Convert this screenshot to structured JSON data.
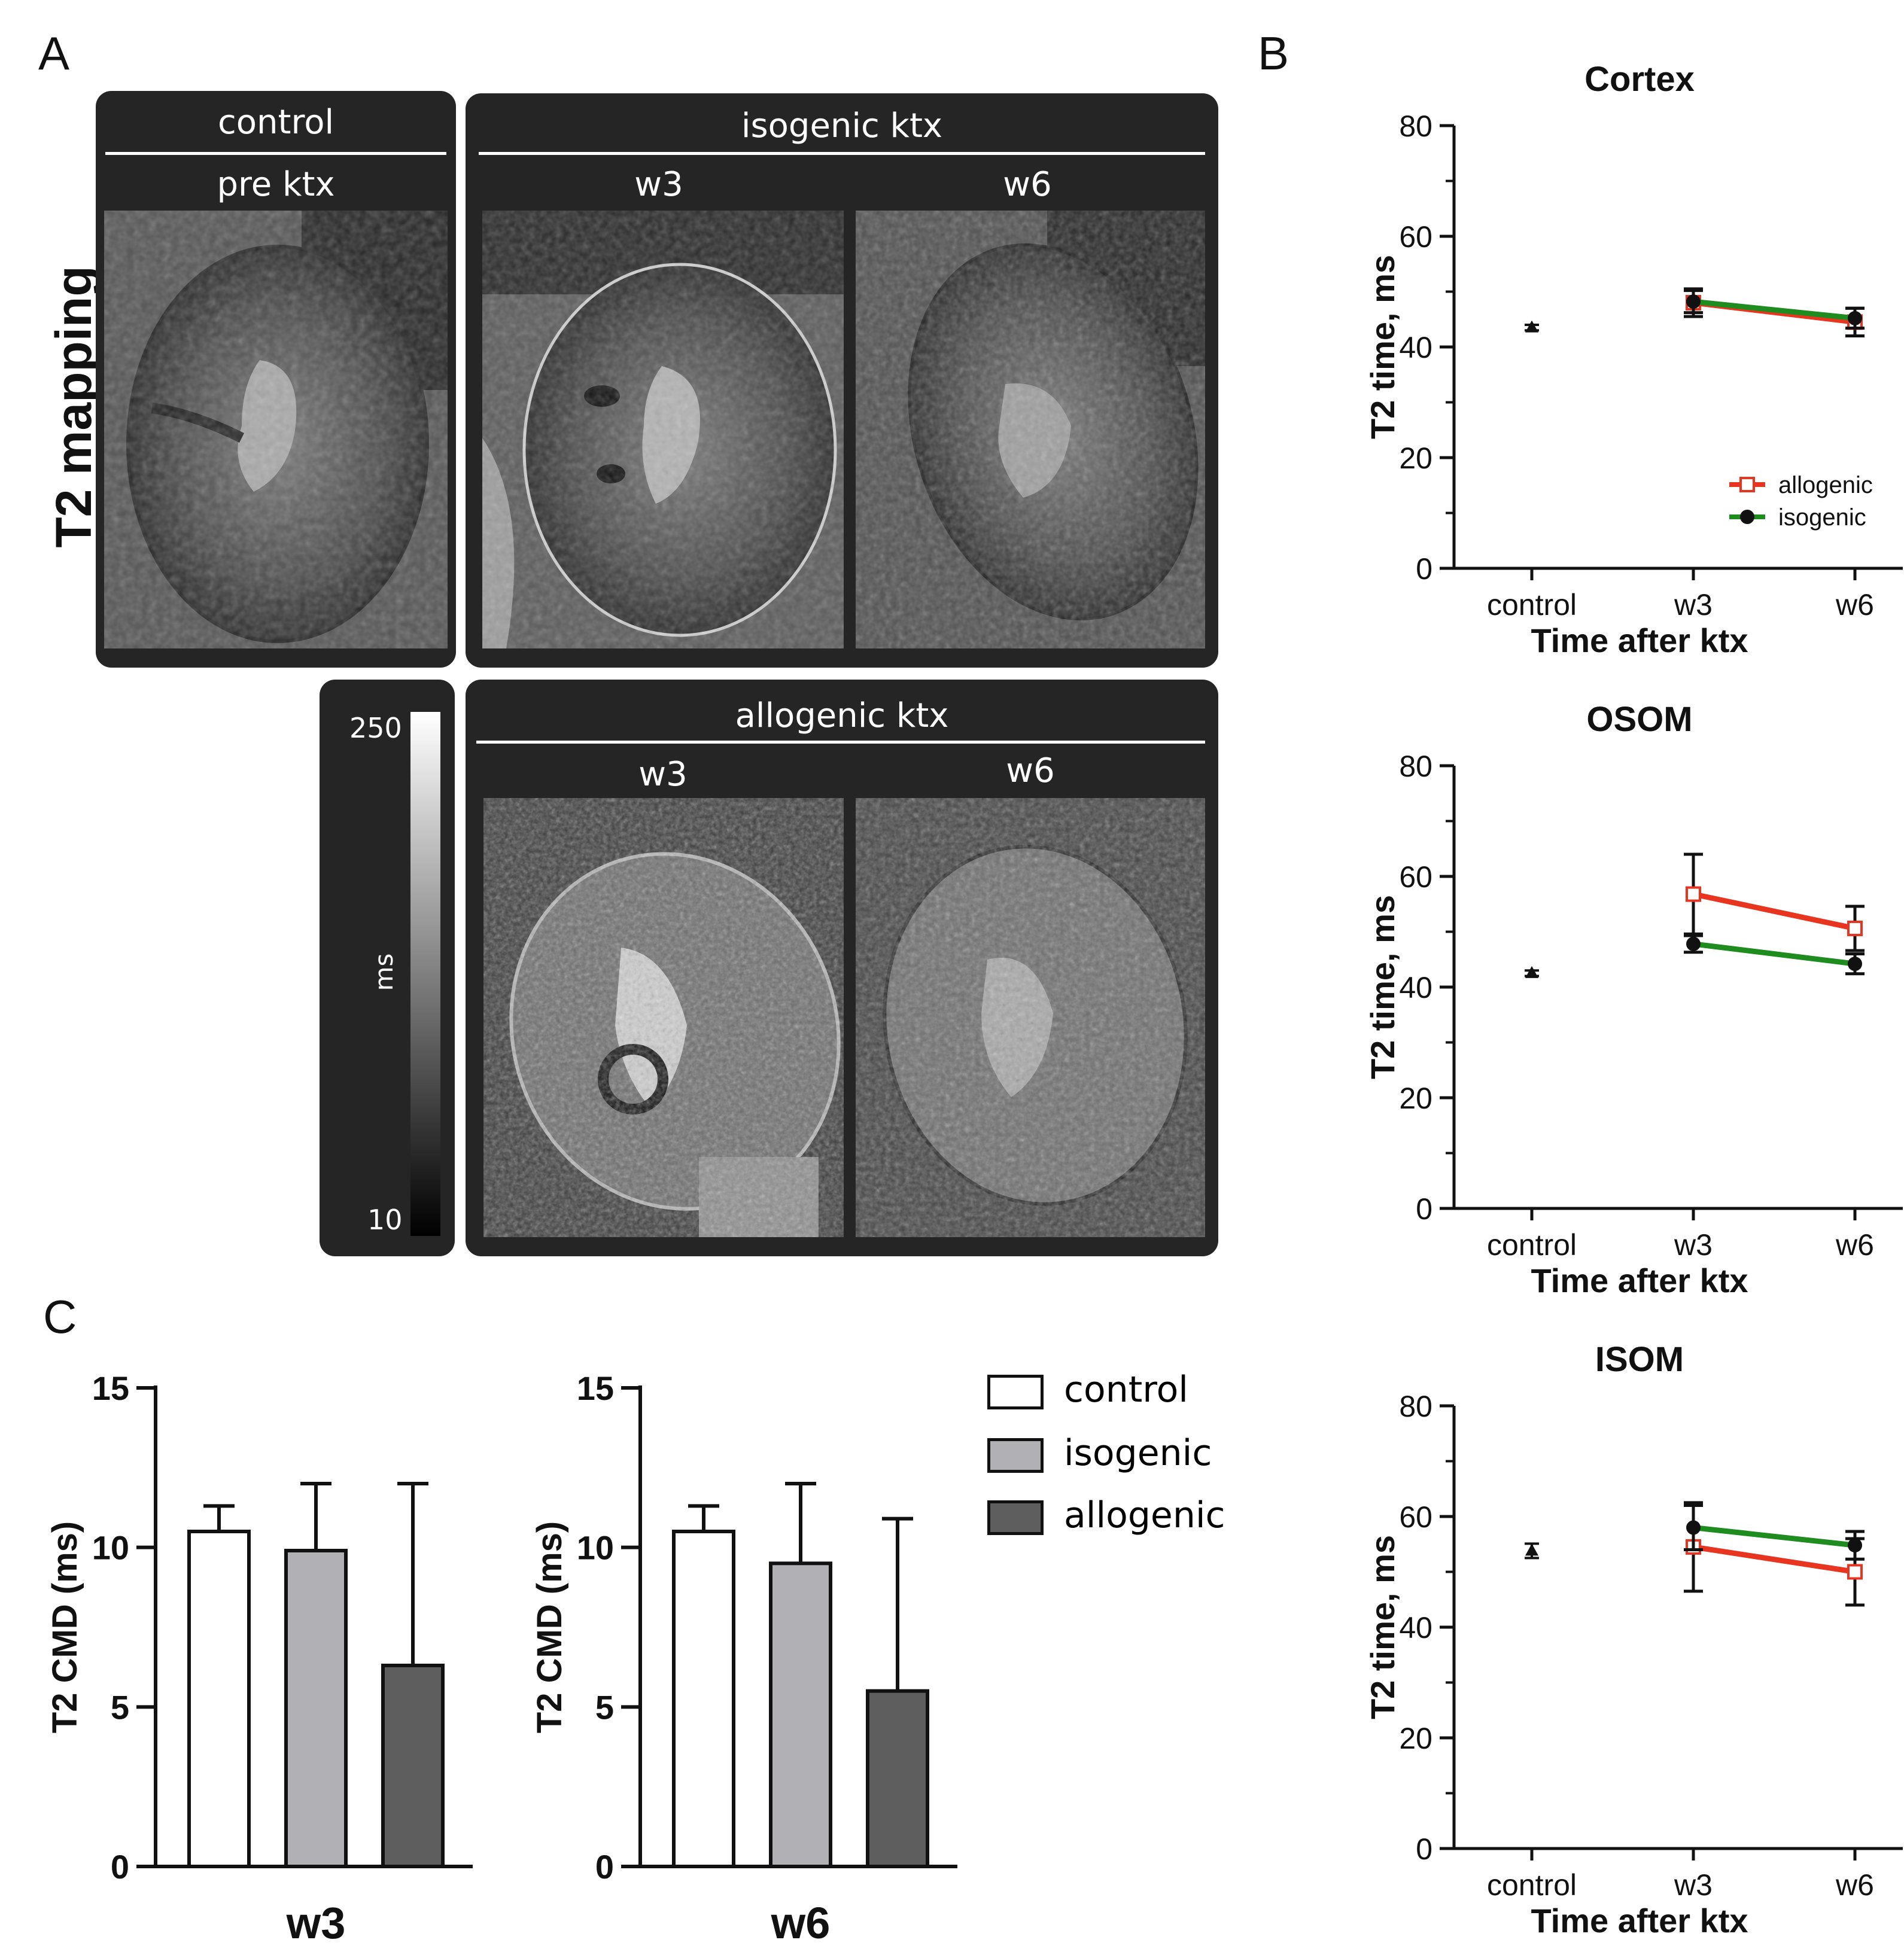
{
  "panels": {
    "a": {
      "letter": "A"
    },
    "b": {
      "letter": "B"
    },
    "c": {
      "letter": "C"
    }
  },
  "panel_a": {
    "side_title": "T2 mapping",
    "control_group": {
      "title": "control",
      "col": "pre ktx"
    },
    "isogenic_group": {
      "title": "isogenic ktx",
      "cols": [
        "w3",
        "w6"
      ]
    },
    "allogenic_group": {
      "title": "allogenic ktx",
      "cols": [
        "w3",
        "w6"
      ]
    },
    "colorbar": {
      "max": "250",
      "min": "10",
      "unit": "ms"
    }
  },
  "chart_data": [
    {
      "type": "line",
      "title": "Cortex",
      "xlabel": "Time after ktx",
      "ylabel": "T2 time, ms",
      "ylim": [
        0,
        80
      ],
      "yticks": [
        0,
        20,
        40,
        60,
        80
      ],
      "categories": [
        "control",
        "w3",
        "w6"
      ],
      "legend": [
        "allogenic",
        "isogenic"
      ],
      "control": {
        "value": 43.5,
        "err": 0.5
      },
      "series": [
        {
          "name": "allogenic",
          "color": "#e8351f",
          "marker": "open-square",
          "values": [
            null,
            48,
            44.5
          ],
          "errors": [
            null,
            2.5,
            2.5
          ]
        },
        {
          "name": "isogenic",
          "color": "#1e8c1e",
          "marker": "filled-circle",
          "values": [
            null,
            48.2,
            45.2
          ],
          "errors": [
            null,
            2,
            1.8
          ]
        }
      ]
    },
    {
      "type": "line",
      "title": "OSOM",
      "xlabel": "Time after ktx",
      "ylabel": "T2 time, ms",
      "ylim": [
        0,
        80
      ],
      "yticks": [
        0,
        20,
        40,
        60,
        80
      ],
      "categories": [
        "control",
        "w3",
        "w6"
      ],
      "control": {
        "value": 42.5,
        "err": 0.5
      },
      "series": [
        {
          "name": "allogenic",
          "color": "#e8351f",
          "marker": "open-square",
          "values": [
            null,
            56.8,
            50.6
          ],
          "errors": [
            null,
            7.2,
            4
          ]
        },
        {
          "name": "isogenic",
          "color": "#1e8c1e",
          "marker": "filled-circle",
          "values": [
            null,
            47.8,
            44.2
          ],
          "errors": [
            null,
            1.5,
            1.8
          ]
        }
      ]
    },
    {
      "type": "line",
      "title": "ISOM",
      "xlabel": "Time after ktx",
      "ylabel": "T2 time, ms",
      "ylim": [
        0,
        80
      ],
      "yticks": [
        0,
        20,
        40,
        60,
        80
      ],
      "categories": [
        "control",
        "w3",
        "w6"
      ],
      "control": {
        "value": 53.8,
        "err": 1.3
      },
      "series": [
        {
          "name": "allogenic",
          "color": "#e8351f",
          "marker": "open-square",
          "values": [
            null,
            54.5,
            50
          ],
          "errors": [
            null,
            8,
            6
          ]
        },
        {
          "name": "isogenic",
          "color": "#1e8c1e",
          "marker": "filled-circle",
          "values": [
            null,
            58,
            54.8
          ],
          "errors": [
            null,
            4,
            2.5
          ]
        }
      ]
    },
    {
      "type": "bar",
      "title": "w3",
      "ylabel": "T2 CMD (ms)",
      "ylim": [
        0,
        15
      ],
      "yticks": [
        0,
        5,
        10,
        15
      ],
      "categories": [
        "control",
        "isogenic",
        "allogenic"
      ],
      "values": [
        10.5,
        9.9,
        6.3
      ],
      "errors": [
        0.8,
        2.1,
        5.7
      ],
      "colors": [
        "#ffffff",
        "#b1b1b5",
        "#5e5e5e"
      ]
    },
    {
      "type": "bar",
      "title": "w6",
      "ylabel": "T2 CMD (ms)",
      "ylim": [
        0,
        15
      ],
      "yticks": [
        0,
        5,
        10,
        15
      ],
      "categories": [
        "control",
        "isogenic",
        "allogenic"
      ],
      "values": [
        10.5,
        9.5,
        5.5
      ],
      "errors": [
        0.8,
        2.5,
        5.4
      ],
      "colors": [
        "#ffffff",
        "#b1b1b5",
        "#5e5e5e"
      ]
    }
  ],
  "bar_legend": [
    {
      "label": "control",
      "color": "#ffffff"
    },
    {
      "label": "isogenic",
      "color": "#b1b1b5"
    },
    {
      "label": "allogenic",
      "color": "#5e5e5e"
    }
  ]
}
